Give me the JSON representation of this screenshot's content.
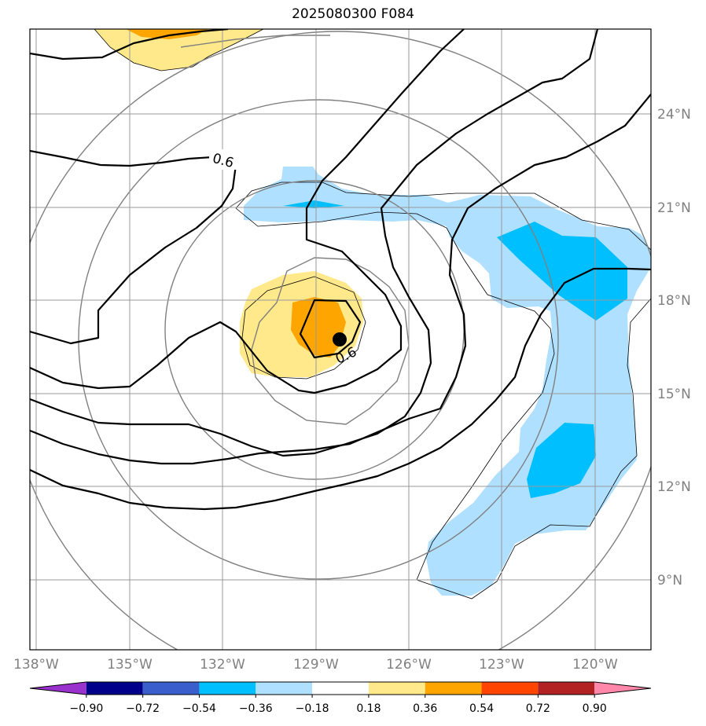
{
  "title": "2025080300 F084",
  "map": {
    "lat_labels": [
      "24°N",
      "21°N",
      "18°N",
      "15°N",
      "12°N",
      "9°N"
    ],
    "lon_labels": [
      "138°W",
      "135°W",
      "132°W",
      "129°W",
      "126°W",
      "123°W",
      "120°W"
    ],
    "contour_labels": [
      "0.6",
      "0.6"
    ],
    "fill_colors": {
      "light_blue": "#b0e0ff",
      "blue": "#00bfff",
      "light_yellow": "#ffe98a",
      "orange": "#ffa500"
    },
    "storm_center_marker": "black-dot"
  },
  "colorbar": {
    "colors": [
      "#9932cc",
      "#00008b",
      "#3a5fcd",
      "#00bfff",
      "#b0e0ff",
      "#ffffff",
      "#ffe98a",
      "#ffa500",
      "#ff4500",
      "#b22222",
      "#ff88aa"
    ],
    "ticks": [
      "−0.90",
      "−0.72",
      "−0.54",
      "−0.36",
      "−0.18",
      "0.18",
      "0.36",
      "0.54",
      "0.72",
      "0.90"
    ]
  }
}
